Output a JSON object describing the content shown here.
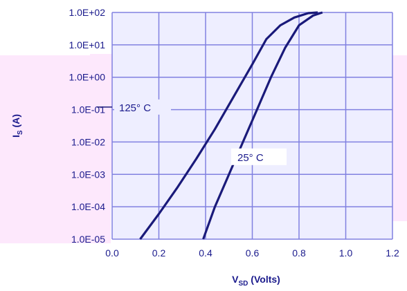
{
  "chart_data": {
    "type": "line",
    "xlabel": "V",
    "xlabel_sub": "SD",
    "xlabel_unit": " (Volts)",
    "ylabel": "I",
    "ylabel_sub": "S",
    "ylabel_unit": " (A)",
    "xlim": [
      0.0,
      1.2
    ],
    "ylim": [
      1e-05,
      100
    ],
    "y_scale": "log",
    "grid": true,
    "x_ticks": [
      "0.0",
      "0.2",
      "0.4",
      "0.6",
      "0.8",
      "1.0",
      "1.2"
    ],
    "y_ticks": [
      "1.0E-05",
      "1.0E-04",
      "1.0E-03",
      "1.0E-02",
      "1.0E-01",
      "1.0E+00",
      "1.0E+01",
      "1.0E+02"
    ],
    "series": [
      {
        "name": "125° C",
        "x": [
          0.12,
          0.2,
          0.28,
          0.36,
          0.44,
          0.52,
          0.6,
          0.66,
          0.72,
          0.78,
          0.84,
          0.88
        ],
        "y": [
          1e-05,
          6e-05,
          0.0004,
          0.003,
          0.025,
          0.25,
          2.5,
          15,
          40,
          70,
          95,
          100
        ]
      },
      {
        "name": "25° C",
        "x": [
          0.39,
          0.44,
          0.5,
          0.56,
          0.62,
          0.68,
          0.74,
          0.8,
          0.86,
          0.9
        ],
        "y": [
          1e-05,
          0.0001,
          0.001,
          0.01,
          0.1,
          1,
          8,
          40,
          80,
          100
        ]
      }
    ],
    "annotations": [
      {
        "text": "125° C",
        "series": 0
      },
      {
        "text": "25° C",
        "series": 1
      }
    ],
    "colors": {
      "plot_bg": "#eeeeff",
      "grid": "#8080e0",
      "line": "#1a1a7a",
      "text": "#1a1a8c",
      "artifact": "#fde8fc"
    }
  }
}
